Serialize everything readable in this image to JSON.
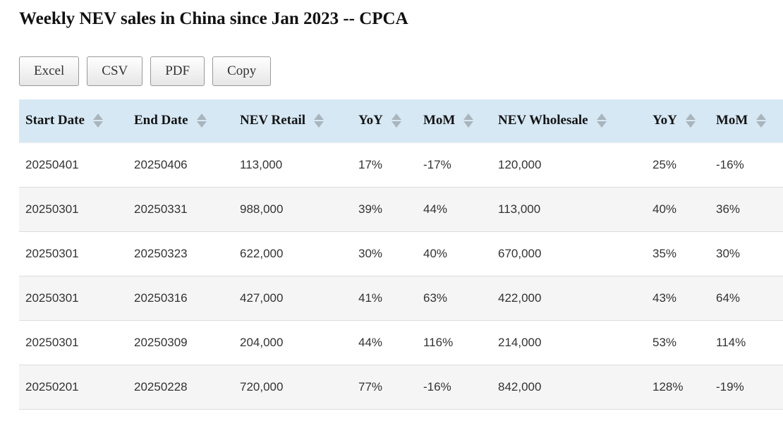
{
  "page": {
    "title": "Weekly NEV sales in China since Jan 2023 -- CPCA"
  },
  "toolbar": {
    "buttons": [
      "Excel",
      "CSV",
      "PDF",
      "Copy"
    ]
  },
  "table": {
    "columns": [
      {
        "label": "Start Date"
      },
      {
        "label": "End Date"
      },
      {
        "label": "NEV Retail"
      },
      {
        "label": "YoY"
      },
      {
        "label": "MoM"
      },
      {
        "label": "NEV Wholesale"
      },
      {
        "label": "YoY"
      },
      {
        "label": "MoM"
      }
    ],
    "rows": [
      [
        "20250401",
        "20250406",
        "113,000",
        "17%",
        "-17%",
        "120,000",
        "25%",
        "-16%"
      ],
      [
        "20250301",
        "20250331",
        "988,000",
        "39%",
        "44%",
        "113,000",
        "40%",
        "36%"
      ],
      [
        "20250301",
        "20250323",
        "622,000",
        "30%",
        "40%",
        "670,000",
        "35%",
        "30%"
      ],
      [
        "20250301",
        "20250316",
        "427,000",
        "41%",
        "63%",
        "422,000",
        "43%",
        "64%"
      ],
      [
        "20250301",
        "20250309",
        "204,000",
        "44%",
        "116%",
        "214,000",
        "53%",
        "114%"
      ],
      [
        "20250201",
        "20250228",
        "720,000",
        "77%",
        "-16%",
        "842,000",
        "128%",
        "-19%"
      ]
    ]
  },
  "icons": {
    "sort": "sort-arrows-icon"
  },
  "colors": {
    "header_bg": "#d6e8f4",
    "row_alt_bg": "#f5f5f5",
    "row_border": "#dddddd",
    "sort_icon": "#a9b5bd",
    "button_border": "#999999"
  }
}
